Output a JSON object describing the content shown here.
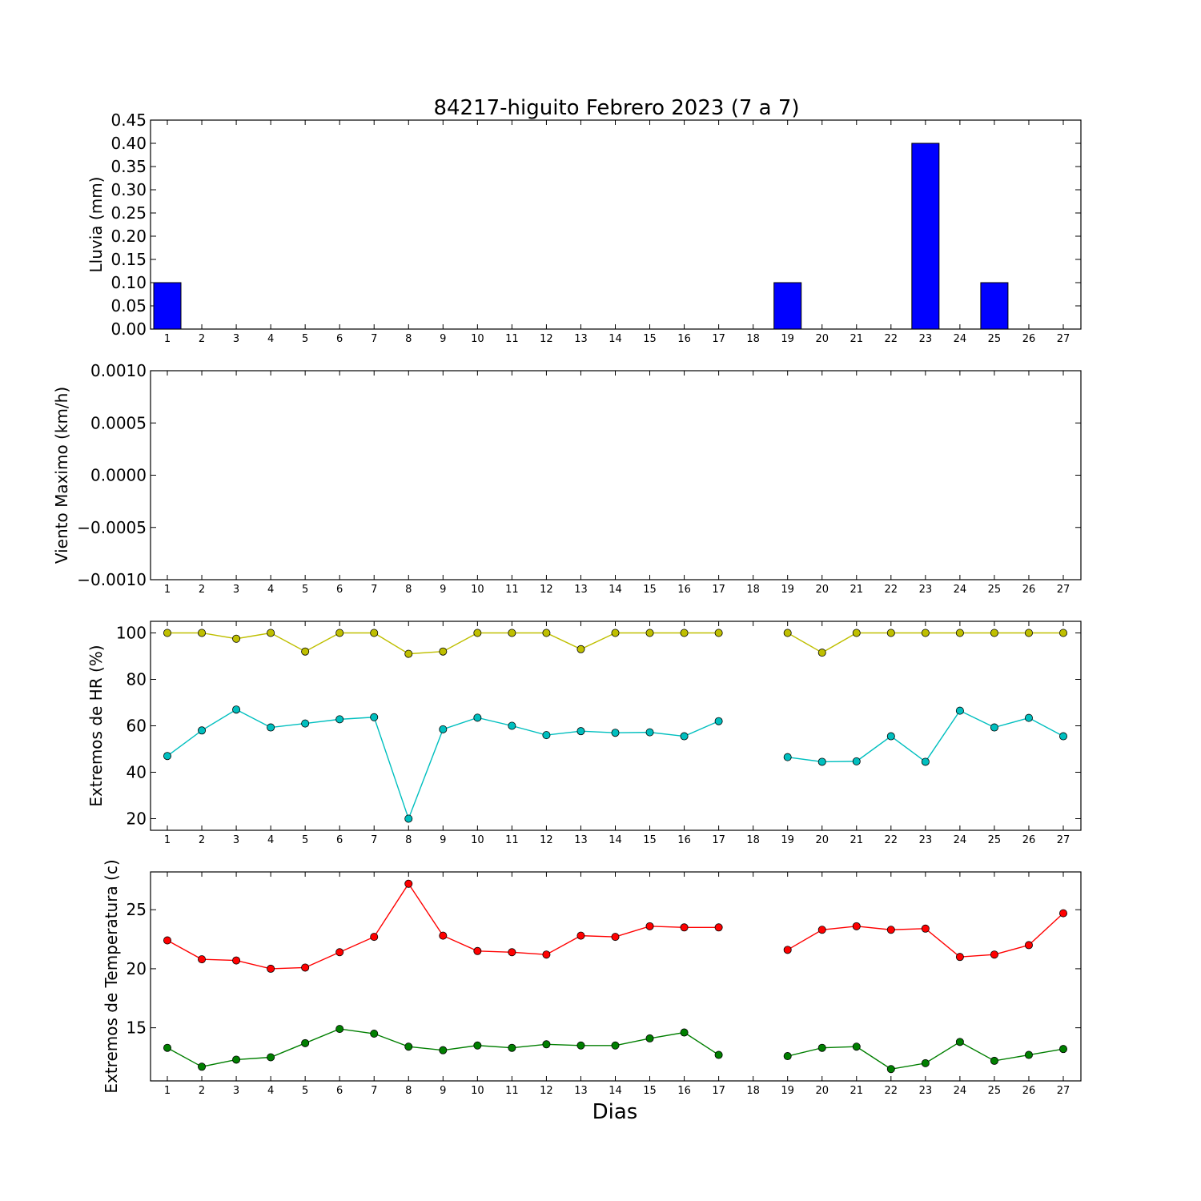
{
  "title": "84217-higuito Febrero 2023  (7 a 7)",
  "xlabel": "Dias",
  "days": [
    1,
    2,
    3,
    4,
    5,
    6,
    7,
    8,
    9,
    10,
    11,
    12,
    13,
    14,
    15,
    16,
    17,
    18,
    19,
    20,
    21,
    22,
    23,
    24,
    25,
    26,
    27
  ],
  "chart_data": [
    {
      "type": "bar",
      "ylabel": "Lluvia (mm)",
      "ylim": [
        0,
        0.45
      ],
      "yticks": [
        "0.00",
        "0.05",
        "0.10",
        "0.15",
        "0.20",
        "0.25",
        "0.30",
        "0.35",
        "0.40",
        "0.45"
      ],
      "color": "#0000ff",
      "values": [
        0.1,
        0,
        0,
        0,
        0,
        0,
        0,
        0,
        0,
        0,
        0,
        0,
        0,
        0,
        0,
        0,
        0,
        null,
        0.1,
        0,
        0,
        0,
        0.4,
        0,
        0.1,
        0,
        0
      ]
    },
    {
      "type": "line",
      "ylabel": "Viento Maximo (km/h)",
      "ylim": [
        -0.001,
        0.001
      ],
      "yticks": [
        "−0.0010",
        "−0.0005",
        "0.0000",
        "0.0005",
        "0.0010"
      ],
      "series": []
    },
    {
      "type": "line",
      "ylabel": "Extremos de HR (%)",
      "ylim": [
        15,
        105
      ],
      "yticks": [
        "20",
        "40",
        "60",
        "80",
        "100"
      ],
      "series": [
        {
          "color": "#bfbf00",
          "values": [
            100,
            100,
            97.5,
            100,
            92,
            100,
            100,
            91,
            92,
            100,
            100,
            100,
            93,
            100,
            100,
            100,
            100,
            null,
            100,
            91.5,
            100,
            100,
            100,
            100,
            100,
            100,
            100
          ]
        },
        {
          "color": "#00bfbf",
          "values": [
            47,
            58,
            67,
            59.3,
            61,
            62.8,
            63.7,
            20,
            58.5,
            63.5,
            60,
            56,
            57.7,
            57,
            57.2,
            55.5,
            62,
            null,
            46.5,
            44.5,
            44.7,
            55.5,
            44.5,
            66.5,
            59.3,
            63.4,
            55.5
          ]
        }
      ]
    },
    {
      "type": "line",
      "ylabel": "Extremos de Temperatura (c)",
      "ylim": [
        10.5,
        28.2
      ],
      "yticks": [
        "15",
        "20",
        "25"
      ],
      "series": [
        {
          "color": "#ff0000",
          "values": [
            22.4,
            20.8,
            20.7,
            20,
            20.1,
            21.4,
            22.7,
            27.2,
            22.8,
            21.5,
            21.4,
            21.2,
            22.8,
            22.7,
            23.6,
            23.5,
            23.5,
            null,
            21.6,
            23.3,
            23.6,
            23.3,
            23.4,
            21,
            21.2,
            22,
            24.7
          ]
        },
        {
          "color": "#007f00",
          "values": [
            13.3,
            11.7,
            12.3,
            12.5,
            13.7,
            14.9,
            14.5,
            13.4,
            13.1,
            13.5,
            13.3,
            13.6,
            13.5,
            13.5,
            14.1,
            14.6,
            12.7,
            null,
            12.6,
            13.3,
            13.4,
            11.5,
            12,
            13.8,
            12.2,
            12.7,
            13.2
          ]
        }
      ]
    }
  ]
}
